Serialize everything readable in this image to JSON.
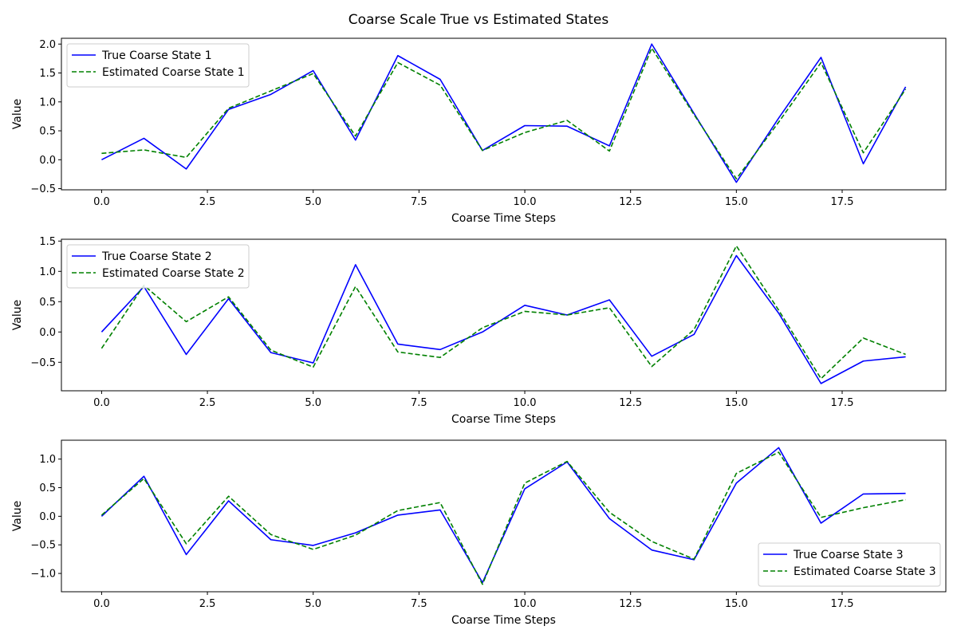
{
  "title": "Coarse Scale True vs Estimated States",
  "chart_data": [
    {
      "type": "line",
      "xlabel": "Coarse Time Steps",
      "ylabel": "Value",
      "xlim": [
        -0.95,
        19.95
      ],
      "ylim": [
        -0.52,
        2.1
      ],
      "xticks": [
        0,
        2.5,
        5,
        7.5,
        10,
        12.5,
        15,
        17.5
      ],
      "xtick_labels": [
        "0.0",
        "2.5",
        "5.0",
        "7.5",
        "10.0",
        "12.5",
        "15.0",
        "17.5"
      ],
      "yticks": [
        -0.5,
        0,
        0.5,
        1,
        1.5,
        2
      ],
      "ytick_labels": [
        "−0.5",
        "0.0",
        "0.5",
        "1.0",
        "1.5",
        "2.0"
      ],
      "legend_position": "upper-left",
      "x": [
        0,
        1,
        2,
        3,
        4,
        5,
        6,
        7,
        8,
        9,
        10,
        11,
        12,
        13,
        14,
        15,
        16,
        17,
        18,
        19
      ],
      "series": [
        {
          "name": "True Coarse State 1",
          "color": "#0000ff",
          "dash": "solid",
          "values": [
            0.0,
            0.37,
            -0.16,
            0.87,
            1.13,
            1.54,
            0.34,
            1.8,
            1.39,
            0.16,
            0.59,
            0.58,
            0.24,
            2.0,
            0.8,
            -0.39,
            0.72,
            1.77,
            -0.07,
            1.26
          ]
        },
        {
          "name": "Estimated Coarse State 1",
          "color": "#008000",
          "dash": "dashed",
          "values": [
            0.11,
            0.17,
            0.04,
            0.89,
            1.19,
            1.49,
            0.41,
            1.68,
            1.29,
            0.16,
            0.47,
            0.68,
            0.15,
            1.93,
            0.78,
            -0.33,
            0.65,
            1.68,
            0.12,
            1.22
          ]
        }
      ]
    },
    {
      "type": "line",
      "xlabel": "Coarse Time Steps",
      "ylabel": "Value",
      "xlim": [
        -0.95,
        19.95
      ],
      "ylim": [
        -0.97,
        1.53
      ],
      "xticks": [
        0,
        2.5,
        5,
        7.5,
        10,
        12.5,
        15,
        17.5
      ],
      "xtick_labels": [
        "0.0",
        "2.5",
        "5.0",
        "7.5",
        "10.0",
        "12.5",
        "15.0",
        "17.5"
      ],
      "yticks": [
        -0.5,
        0,
        0.5,
        1,
        1.5
      ],
      "ytick_labels": [
        "−0.5",
        "0.0",
        "0.5",
        "1.0",
        "1.5"
      ],
      "legend_position": "upper-left",
      "x": [
        0,
        1,
        2,
        3,
        4,
        5,
        6,
        7,
        8,
        9,
        10,
        11,
        12,
        13,
        14,
        15,
        16,
        17,
        18,
        19
      ],
      "series": [
        {
          "name": "True Coarse State 2",
          "color": "#0000ff",
          "dash": "solid",
          "values": [
            0.0,
            0.75,
            -0.37,
            0.55,
            -0.34,
            -0.51,
            1.11,
            -0.2,
            -0.29,
            0.0,
            0.44,
            0.28,
            0.53,
            -0.4,
            -0.04,
            1.26,
            0.31,
            -0.85,
            -0.48,
            -0.41
          ]
        },
        {
          "name": "Estimated Coarse State 2",
          "color": "#008000",
          "dash": "dashed",
          "values": [
            -0.27,
            0.77,
            0.17,
            0.58,
            -0.3,
            -0.58,
            0.75,
            -0.33,
            -0.42,
            0.07,
            0.34,
            0.28,
            0.4,
            -0.57,
            0.04,
            1.42,
            0.36,
            -0.77,
            -0.1,
            -0.37
          ]
        }
      ]
    },
    {
      "type": "line",
      "xlabel": "Coarse Time Steps",
      "ylabel": "Value",
      "xlim": [
        -0.95,
        19.95
      ],
      "ylim": [
        -1.32,
        1.33
      ],
      "xticks": [
        0,
        2.5,
        5,
        7.5,
        10,
        12.5,
        15,
        17.5
      ],
      "xtick_labels": [
        "0.0",
        "2.5",
        "5.0",
        "7.5",
        "10.0",
        "12.5",
        "15.0",
        "17.5"
      ],
      "yticks": [
        -1,
        -0.5,
        0,
        0.5,
        1
      ],
      "ytick_labels": [
        "−1.0",
        "−0.5",
        "0.0",
        "0.5",
        "1.0"
      ],
      "legend_position": "lower-right",
      "x": [
        0,
        1,
        2,
        3,
        4,
        5,
        6,
        7,
        8,
        9,
        10,
        11,
        12,
        13,
        14,
        15,
        16,
        17,
        18,
        19
      ],
      "series": [
        {
          "name": "True Coarse State 3",
          "color": "#0000ff",
          "dash": "solid",
          "values": [
            0.0,
            0.7,
            -0.67,
            0.27,
            -0.41,
            -0.51,
            -0.29,
            0.02,
            0.11,
            -1.16,
            0.48,
            0.95,
            -0.04,
            -0.59,
            -0.76,
            0.58,
            1.2,
            -0.12,
            0.39,
            0.4
          ]
        },
        {
          "name": "Estimated Coarse State 3",
          "color": "#008000",
          "dash": "dashed",
          "values": [
            0.02,
            0.66,
            -0.48,
            0.35,
            -0.32,
            -0.58,
            -0.33,
            0.1,
            0.24,
            -1.19,
            0.58,
            0.96,
            0.07,
            -0.44,
            -0.75,
            0.75,
            1.12,
            -0.02,
            0.15,
            0.29
          ]
        }
      ]
    }
  ]
}
